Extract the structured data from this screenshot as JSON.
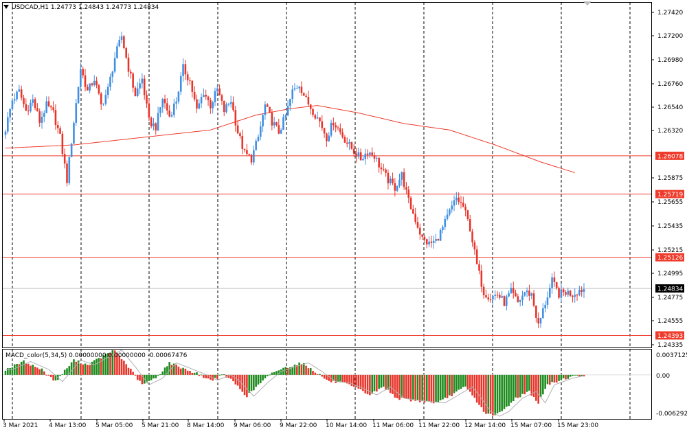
{
  "header": {
    "symbol_line": "USDCAD,H1  1.24773  1.24843  1.24773  1.24834"
  },
  "macd": {
    "label": "MACD_color(5,34,5) 0.00000000 0.00000000 -0.00067476",
    "y_labels": [
      "0.0037125",
      "0.00",
      "-0.006292"
    ]
  },
  "chart_data": {
    "type": "candlestick",
    "price_axis_ticks": [
      "1.27420",
      "1.27200",
      "1.26980",
      "1.26760",
      "1.26540",
      "1.26320",
      "1.25875",
      "1.25655",
      "1.25435",
      "1.25215",
      "1.24995",
      "1.24775",
      "1.24555",
      "1.24335"
    ],
    "time_axis_labels": [
      "3 Mar 2021",
      "4 Mar 13:00",
      "5 Mar 05:00",
      "5 Mar 21:00",
      "8 Mar 14:00",
      "9 Mar 06:00",
      "9 Mar 22:00",
      "10 Mar 14:00",
      "11 Mar 06:00",
      "11 Mar 22:00",
      "12 Mar 14:00",
      "15 Mar 07:00",
      "15 Mar 23:00"
    ],
    "levels": [
      {
        "value": 1.26078,
        "label": "1.26078",
        "color": "#ee3b2b"
      },
      {
        "value": 1.25719,
        "label": "1.25719",
        "color": "#ee3b2b"
      },
      {
        "value": 1.25126,
        "label": "1.25126",
        "color": "#ee3b2b"
      },
      {
        "value": 1.24393,
        "label": "1.24393",
        "color": "#ee3b2b"
      }
    ],
    "current_price": {
      "value": 1.24834,
      "label": "1.24834"
    },
    "price_range": [
      1.2428,
      1.2752
    ],
    "macd_range": [
      -0.0066,
      0.0039
    ],
    "colors": {
      "bull": "#3f8fe3",
      "bear": "#e8352b",
      "ma": "#ee3b2b",
      "macd_up": "#1e8b1e",
      "macd_down": "#e8352b",
      "signal": "#b0b0b0",
      "grid": "#000000"
    },
    "anchors": [
      [
        0,
        1.2633
      ],
      [
        3,
        1.266
      ],
      [
        6,
        1.2668
      ],
      [
        9,
        1.265
      ],
      [
        12,
        1.266
      ],
      [
        15,
        1.264
      ],
      [
        18,
        1.2655
      ],
      [
        21,
        1.2648
      ],
      [
        24,
        1.2625
      ],
      [
        27,
        1.2585
      ],
      [
        30,
        1.264
      ],
      [
        33,
        1.269
      ],
      [
        36,
        1.2668
      ],
      [
        39,
        1.268
      ],
      [
        42,
        1.2655
      ],
      [
        45,
        1.267
      ],
      [
        48,
        1.27
      ],
      [
        51,
        1.272
      ],
      [
        54,
        1.269
      ],
      [
        57,
        1.2665
      ],
      [
        60,
        1.268
      ],
      [
        63,
        1.264
      ],
      [
        66,
        1.2635
      ],
      [
        69,
        1.2662
      ],
      [
        72,
        1.2645
      ],
      [
        75,
        1.266
      ],
      [
        78,
        1.269
      ],
      [
        81,
        1.2678
      ],
      [
        84,
        1.265
      ],
      [
        87,
        1.2668
      ],
      [
        90,
        1.2655
      ],
      [
        93,
        1.267
      ],
      [
        96,
        1.265
      ],
      [
        99,
        1.266
      ],
      [
        102,
        1.263
      ],
      [
        105,
        1.261
      ],
      [
        108,
        1.2605
      ],
      [
        111,
        1.2625
      ],
      [
        114,
        1.2655
      ],
      [
        117,
        1.264
      ],
      [
        120,
        1.263
      ],
      [
        123,
        1.2645
      ],
      [
        126,
        1.2668
      ],
      [
        129,
        1.2675
      ],
      [
        132,
        1.266
      ],
      [
        135,
        1.265
      ],
      [
        138,
        1.264
      ],
      [
        141,
        1.2625
      ],
      [
        144,
        1.264
      ],
      [
        147,
        1.263
      ],
      [
        150,
        1.262
      ],
      [
        153,
        1.2612
      ],
      [
        156,
        1.2605
      ],
      [
        159,
        1.2612
      ],
      [
        162,
        1.2608
      ],
      [
        165,
        1.2595
      ],
      [
        168,
        1.2585
      ],
      [
        171,
        1.2578
      ],
      [
        174,
        1.259
      ],
      [
        177,
        1.2565
      ],
      [
        180,
        1.2548
      ],
      [
        183,
        1.253
      ],
      [
        186,
        1.2525
      ],
      [
        189,
        1.2528
      ],
      [
        192,
        1.254
      ],
      [
        195,
        1.2555
      ],
      [
        198,
        1.2568
      ],
      [
        201,
        1.256
      ],
      [
        204,
        1.254
      ],
      [
        207,
        1.2505
      ],
      [
        210,
        1.248
      ],
      [
        213,
        1.2475
      ],
      [
        216,
        1.2478
      ],
      [
        219,
        1.247
      ],
      [
        222,
        1.248
      ],
      [
        225,
        1.247
      ],
      [
        228,
        1.248
      ],
      [
        231,
        1.2478
      ],
      [
        234,
        1.2448
      ],
      [
        237,
        1.247
      ],
      [
        240,
        1.249
      ],
      [
        243,
        1.2478
      ],
      [
        246,
        1.248
      ],
      [
        249,
        1.2478
      ],
      [
        252,
        1.2482
      ],
      [
        254,
        1.2483
      ]
    ],
    "ma_anchors": [
      [
        0,
        1.2615
      ],
      [
        30,
        1.2618
      ],
      [
        60,
        1.2625
      ],
      [
        90,
        1.2632
      ],
      [
        110,
        1.2646
      ],
      [
        125,
        1.2652
      ],
      [
        137,
        1.2655
      ],
      [
        155,
        1.2648
      ],
      [
        175,
        1.2638
      ],
      [
        195,
        1.2632
      ],
      [
        215,
        1.2618
      ],
      [
        235,
        1.2602
      ],
      [
        250,
        1.2592
      ]
    ],
    "macd_anchors": [
      [
        0,
        0.0008
      ],
      [
        8,
        0.002
      ],
      [
        16,
        0.0008
      ],
      [
        22,
        -0.001
      ],
      [
        26,
        0.0006
      ],
      [
        30,
        0.0022
      ],
      [
        36,
        0.0015
      ],
      [
        44,
        0.003
      ],
      [
        48,
        0.0037
      ],
      [
        54,
        0.0012
      ],
      [
        60,
        -0.0015
      ],
      [
        66,
        -0.0005
      ],
      [
        72,
        0.0018
      ],
      [
        78,
        0.001
      ],
      [
        84,
        0.0002
      ],
      [
        90,
        -0.0008
      ],
      [
        96,
        0.0
      ],
      [
        100,
        -0.001
      ],
      [
        106,
        -0.0032
      ],
      [
        112,
        -0.0012
      ],
      [
        118,
        0.0005
      ],
      [
        124,
        0.0012
      ],
      [
        130,
        0.0018
      ],
      [
        136,
        0.0005
      ],
      [
        142,
        -0.001
      ],
      [
        148,
        -0.0012
      ],
      [
        154,
        -0.002
      ],
      [
        160,
        -0.003
      ],
      [
        166,
        -0.0018
      ],
      [
        172,
        -0.0035
      ],
      [
        178,
        -0.0038
      ],
      [
        184,
        -0.004
      ],
      [
        190,
        -0.0042
      ],
      [
        196,
        -0.003
      ],
      [
        202,
        -0.0018
      ],
      [
        206,
        -0.0035
      ],
      [
        210,
        -0.0055
      ],
      [
        214,
        -0.0062
      ],
      [
        218,
        -0.0055
      ],
      [
        224,
        -0.0035
      ],
      [
        230,
        -0.0025
      ],
      [
        234,
        -0.0042
      ],
      [
        238,
        -0.0015
      ],
      [
        242,
        -0.001
      ],
      [
        246,
        -0.0005
      ],
      [
        250,
        -0.0002
      ],
      [
        254,
        -0.0001
      ]
    ],
    "candle_count": 255
  }
}
